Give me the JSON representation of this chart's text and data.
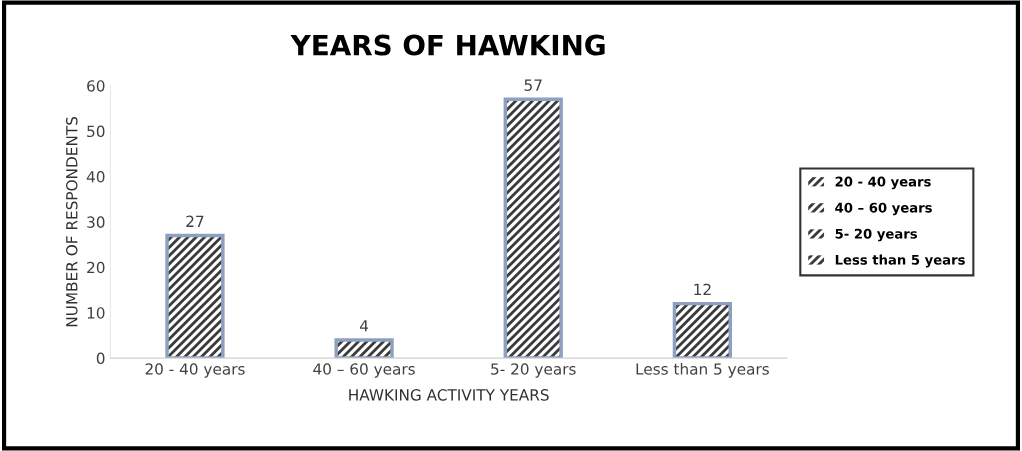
{
  "chart_data": {
    "type": "bar",
    "title": "YEARS OF HAWKING",
    "xlabel": "HAWKING ACTIVITY YEARS",
    "ylabel": "NUMBER OF RESPONDENTS",
    "categories": [
      "20 - 40 years",
      "40 – 60 years",
      "5- 20 years",
      "Less than 5 years"
    ],
    "series": [
      {
        "name": "20 - 40 years",
        "color": "#3a3a3a",
        "values": [
          27,
          null,
          null,
          null
        ]
      },
      {
        "name": "40 – 60 years",
        "color": "#3a3a3a",
        "values": [
          null,
          4,
          null,
          null
        ]
      },
      {
        "name": "5- 20 years",
        "color": "#3a3a3a",
        "values": [
          null,
          null,
          57,
          null
        ]
      },
      {
        "name": "Less than 5 years",
        "color": "#3a3a3a",
        "values": [
          null,
          null,
          null,
          12
        ]
      }
    ],
    "ylim": [
      0,
      60
    ],
    "yticks": [
      0,
      10,
      20,
      30,
      40,
      50,
      60
    ],
    "grid": false,
    "legend": "right",
    "data_labels": true
  }
}
